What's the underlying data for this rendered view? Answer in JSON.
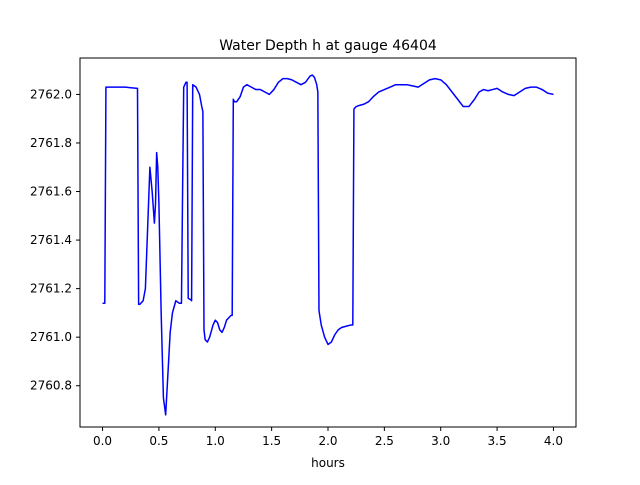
{
  "chart_data": {
    "type": "line",
    "title": "Water Depth h at gauge 46404",
    "xlabel": "hours",
    "ylabel": "",
    "xlim": [
      -0.2,
      4.2
    ],
    "ylim": [
      2760.63,
      2762.15
    ],
    "x_ticks": [
      0.0,
      0.5,
      1.0,
      1.5,
      2.0,
      2.5,
      3.0,
      3.5,
      4.0
    ],
    "x_tick_labels": [
      "0.0",
      "0.5",
      "1.0",
      "1.5",
      "2.0",
      "2.5",
      "3.0",
      "3.5",
      "4.0"
    ],
    "y_ticks": [
      2760.8,
      2761.0,
      2761.2,
      2761.4,
      2761.6,
      2761.8,
      2762.0
    ],
    "y_tick_labels": [
      "2760.8",
      "2761.0",
      "2761.2",
      "2761.4",
      "2761.6",
      "2761.8",
      "2762.0"
    ],
    "grid": false,
    "series": [
      {
        "color": "#0000ff",
        "x": [
          0.0,
          0.02,
          0.03,
          0.2,
          0.31,
          0.32,
          0.33,
          0.36,
          0.38,
          0.4,
          0.42,
          0.44,
          0.46,
          0.47,
          0.48,
          0.49,
          0.5,
          0.52,
          0.54,
          0.56,
          0.58,
          0.6,
          0.62,
          0.65,
          0.68,
          0.7,
          0.71,
          0.72,
          0.74,
          0.75,
          0.76,
          0.78,
          0.79,
          0.8,
          0.83,
          0.86,
          0.88,
          0.89,
          0.9,
          0.91,
          0.93,
          0.95,
          0.98,
          1.0,
          1.02,
          1.04,
          1.06,
          1.08,
          1.1,
          1.12,
          1.14,
          1.15,
          1.16,
          1.17,
          1.19,
          1.22,
          1.25,
          1.28,
          1.32,
          1.36,
          1.4,
          1.44,
          1.48,
          1.52,
          1.56,
          1.6,
          1.64,
          1.68,
          1.72,
          1.76,
          1.8,
          1.84,
          1.86,
          1.88,
          1.9,
          1.91,
          1.92,
          1.94,
          1.97,
          2.0,
          2.03,
          2.06,
          2.09,
          2.12,
          2.16,
          2.2,
          2.22,
          2.23,
          2.25,
          2.28,
          2.32,
          2.36,
          2.4,
          2.45,
          2.5,
          2.55,
          2.6,
          2.65,
          2.7,
          2.75,
          2.8,
          2.85,
          2.9,
          2.95,
          3.0,
          3.05,
          3.1,
          3.15,
          3.2,
          3.25,
          3.3,
          3.34,
          3.38,
          3.42,
          3.46,
          3.5,
          3.55,
          3.6,
          3.65,
          3.7,
          3.75,
          3.8,
          3.85,
          3.9,
          3.95,
          4.0
        ],
        "values": [
          2761.14,
          2761.14,
          2762.03,
          2762.03,
          2762.025,
          2761.135,
          2761.135,
          2761.15,
          2761.2,
          2761.45,
          2761.7,
          2761.6,
          2761.47,
          2761.55,
          2761.76,
          2761.7,
          2761.55,
          2761.1,
          2760.75,
          2760.68,
          2760.85,
          2761.02,
          2761.1,
          2761.15,
          2761.14,
          2761.14,
          2761.6,
          2762.03,
          2762.05,
          2762.05,
          2761.16,
          2761.155,
          2761.15,
          2762.04,
          2762.03,
          2762.0,
          2761.95,
          2761.93,
          2761.03,
          2760.99,
          2760.98,
          2761.0,
          2761.05,
          2761.07,
          2761.06,
          2761.03,
          2761.02,
          2761.04,
          2761.07,
          2761.08,
          2761.09,
          2761.09,
          2761.98,
          2761.97,
          2761.97,
          2761.99,
          2762.03,
          2762.04,
          2762.03,
          2762.02,
          2762.02,
          2762.01,
          2762.0,
          2762.02,
          2762.05,
          2762.065,
          2762.065,
          2762.06,
          2762.05,
          2762.04,
          2762.05,
          2762.075,
          2762.08,
          2762.07,
          2762.04,
          2762.01,
          2761.11,
          2761.05,
          2761.0,
          2760.97,
          2760.98,
          2761.01,
          2761.03,
          2761.04,
          2761.045,
          2761.05,
          2761.05,
          2761.94,
          2761.95,
          2761.955,
          2761.96,
          2761.97,
          2761.99,
          2762.01,
          2762.02,
          2762.03,
          2762.04,
          2762.04,
          2762.04,
          2762.035,
          2762.03,
          2762.045,
          2762.06,
          2762.065,
          2762.06,
          2762.04,
          2762.01,
          2761.98,
          2761.95,
          2761.95,
          2761.98,
          2762.01,
          2762.02,
          2762.015,
          2762.02,
          2762.025,
          2762.01,
          2762.0,
          2761.995,
          2762.01,
          2762.025,
          2762.03,
          2762.03,
          2762.02,
          2762.005,
          2762.0
        ]
      }
    ]
  }
}
